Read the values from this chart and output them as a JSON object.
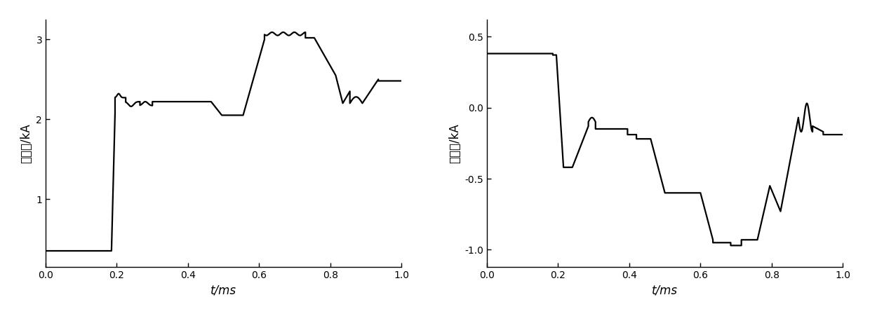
{
  "fig_width": 12.4,
  "fig_height": 4.51,
  "dpi": 100,
  "left_ylabel": "相电流/kA",
  "right_ylabel": "相电流/kA",
  "xlabel": "t/ms",
  "left_ylim": [
    0.15,
    3.25
  ],
  "right_ylim": [
    -1.12,
    0.62
  ],
  "left_yticks": [
    1,
    2,
    3
  ],
  "right_yticks": [
    -1,
    -0.5,
    0,
    0.5
  ],
  "xlim": [
    0,
    1.0
  ],
  "xticks": [
    0,
    0.2,
    0.4,
    0.6,
    0.8,
    1.0
  ],
  "line_color": "#000000",
  "line_width": 1.6,
  "bg_color": "#ffffff"
}
